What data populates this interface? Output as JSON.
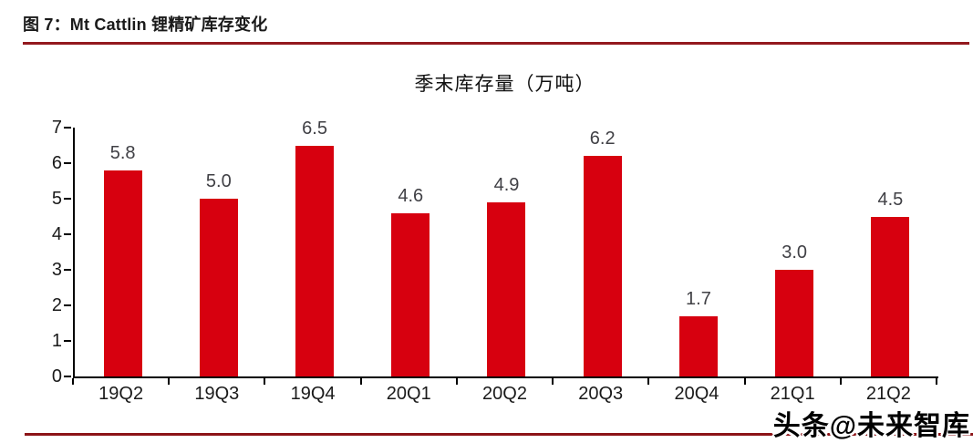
{
  "figure": {
    "caption": "图 7：Mt Cattlin 锂精矿库存变化",
    "caption_rule_color": "#93191e",
    "bottom_rule_color": "#8c1418"
  },
  "chart_data": {
    "type": "bar",
    "title": "季末库存量（万吨）",
    "categories": [
      "19Q2",
      "19Q3",
      "19Q4",
      "20Q1",
      "20Q2",
      "20Q3",
      "20Q4",
      "21Q1",
      "21Q2"
    ],
    "values": [
      5.8,
      5.0,
      6.5,
      4.6,
      4.9,
      6.2,
      1.7,
      3.0,
      4.5
    ],
    "data_labels": [
      "5.8",
      "5.0",
      "6.5",
      "4.6",
      "4.9",
      "6.2",
      "1.7",
      "3.0",
      "4.5"
    ],
    "ylim": [
      0,
      7
    ],
    "yticks": [
      0,
      1,
      2,
      3,
      4,
      5,
      6,
      7
    ],
    "grid": false,
    "legend": "none",
    "bar_color": "#d7000f",
    "axis_color": "#000000",
    "data_label_color": "#404045"
  },
  "watermark": {
    "text": "头条@未来智库"
  }
}
